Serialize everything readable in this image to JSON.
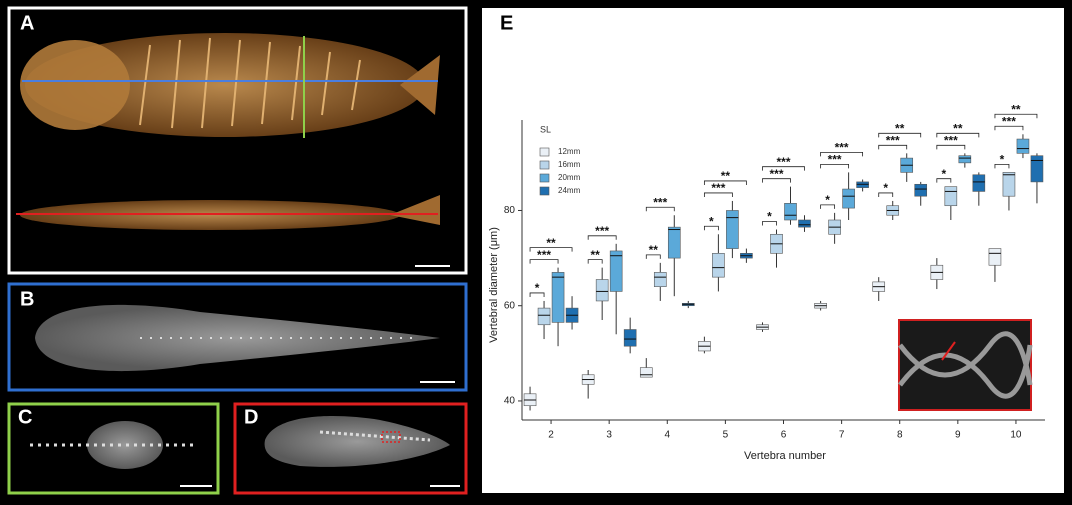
{
  "panel_labels": [
    "A",
    "B",
    "C",
    "D"
  ],
  "chart_data": {
    "type": "box",
    "panel_label": "E",
    "x_label": "Vertebra number",
    "y_label": "Vertebral diameter (μm)",
    "legend_title": "SL",
    "categories": [
      "2",
      "3",
      "4",
      "5",
      "6",
      "7",
      "8",
      "9",
      "10"
    ],
    "ylim": [
      36,
      99
    ],
    "yticks": [
      40,
      60,
      80
    ],
    "series": [
      {
        "name": "12mm",
        "color": "#eaf0f6",
        "values": [
          [
            38,
            39,
            40.2,
            41.5,
            43
          ],
          [
            40.5,
            43.5,
            44.5,
            45.5,
            46.5
          ],
          [
            45,
            45,
            45.5,
            47,
            49
          ],
          [
            50,
            50.5,
            51.5,
            52.5,
            53.5
          ],
          [
            54.5,
            55,
            55.5,
            56,
            56.5
          ],
          [
            59,
            59.5,
            60,
            60.5,
            61
          ],
          [
            61,
            63,
            64,
            65,
            66
          ],
          [
            63.5,
            65.5,
            67,
            68.5,
            70
          ],
          [
            65,
            68.5,
            71,
            72,
            72
          ]
        ]
      },
      {
        "name": "16mm",
        "color": "#b9d5ea",
        "values": [
          [
            53,
            56,
            58,
            59.5,
            61
          ],
          [
            57,
            61,
            63,
            65.5,
            68
          ],
          [
            61,
            64,
            66,
            67,
            69
          ],
          [
            63,
            66,
            68,
            71,
            75
          ],
          [
            68,
            71,
            73,
            75,
            76
          ],
          [
            73,
            75,
            76.5,
            78,
            79.5
          ],
          [
            78,
            79,
            80,
            81,
            82
          ],
          [
            78,
            81,
            84,
            85,
            85
          ],
          [
            80,
            83,
            87.5,
            88,
            88
          ]
        ]
      },
      {
        "name": "20mm",
        "color": "#5ba9d9",
        "values": [
          [
            51.5,
            56.5,
            66,
            67,
            68
          ],
          [
            54,
            63,
            70.5,
            71.5,
            73
          ],
          [
            62,
            70,
            76,
            76.5,
            79
          ],
          [
            70,
            72,
            78.5,
            80,
            82
          ],
          [
            77,
            78,
            79,
            81.5,
            85
          ],
          [
            78,
            80.5,
            83,
            84.5,
            88
          ],
          [
            86,
            88,
            89.5,
            91,
            92
          ],
          [
            89,
            90,
            91,
            91.5,
            92
          ],
          [
            91,
            92,
            93,
            95,
            96
          ]
        ]
      },
      {
        "name": "24mm",
        "color": "#1f6fb0",
        "values": [
          [
            55,
            56.5,
            58,
            59.5,
            62
          ],
          [
            50,
            51.5,
            53,
            55,
            57.5
          ],
          [
            59.5,
            60,
            60.3,
            60.5,
            61
          ],
          [
            69,
            70,
            70.5,
            71,
            72
          ],
          [
            75.5,
            76.5,
            77,
            78,
            79
          ],
          [
            84,
            84.8,
            85.5,
            86,
            86.5
          ],
          [
            81,
            83,
            84.5,
            85.5,
            86
          ],
          [
            81,
            84,
            86,
            87.5,
            88
          ],
          [
            81.5,
            86,
            90.5,
            91.5,
            92
          ]
        ]
      }
    ],
    "significance": [
      [
        "*",
        "***",
        "**"
      ],
      [
        "**",
        "***"
      ],
      [
        "**",
        "***"
      ],
      [
        "*",
        "***",
        "**"
      ],
      [
        "*",
        "***",
        "***"
      ],
      [
        "*",
        "***",
        "***"
      ],
      [
        "*",
        "***",
        "**"
      ],
      [
        "*",
        "***",
        "**"
      ],
      [
        "*",
        "***",
        "**"
      ]
    ]
  }
}
